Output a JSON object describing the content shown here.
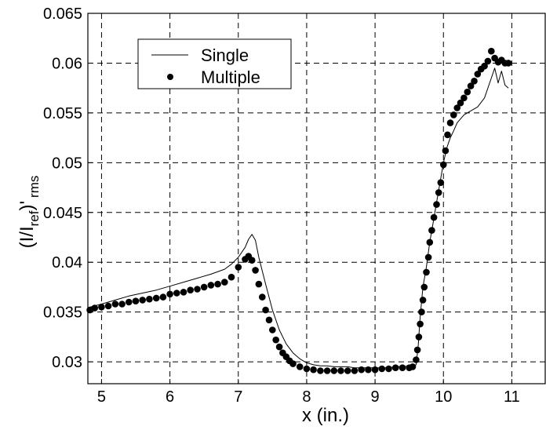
{
  "chart_data": {
    "type": "line",
    "xlabel": "x (in.)",
    "ylabel": {
      "main": "(I/I",
      "sub1": "ref",
      "mid": ")'",
      "sub2": "rms"
    },
    "xlim": [
      4.8,
      11.5
    ],
    "ylim": [
      0.0278,
      0.065
    ],
    "xticks": [
      "5",
      "6",
      "7",
      "8",
      "9",
      "10",
      "11"
    ],
    "yticks": [
      "0.03",
      "0.035",
      "0.04",
      "0.045",
      "0.05",
      "0.055",
      "0.06",
      "0.065"
    ],
    "grid": true,
    "legend_position": "top-left",
    "legend": [
      {
        "label": "Single",
        "style": "line"
      },
      {
        "label": "Multiple",
        "style": "dot"
      }
    ],
    "series": [
      {
        "name": "Single",
        "style": "line",
        "color": "#000000",
        "x": [
          4.83,
          5.0,
          5.2,
          5.4,
          5.6,
          5.8,
          6.0,
          6.2,
          6.4,
          6.6,
          6.8,
          6.9,
          7.0,
          7.1,
          7.15,
          7.2,
          7.25,
          7.3,
          7.4,
          7.5,
          7.6,
          7.7,
          7.8,
          7.9,
          8.0,
          8.1,
          8.2,
          8.3,
          8.4,
          8.5,
          8.6,
          8.7,
          8.8,
          8.9,
          9.0,
          9.1,
          9.2,
          9.3,
          9.4,
          9.5,
          9.55,
          9.6,
          9.63,
          9.66,
          9.7,
          9.75,
          9.8,
          9.85,
          9.9,
          9.95,
          10.0,
          10.05,
          10.1,
          10.15,
          10.2,
          10.3,
          10.4,
          10.5,
          10.6,
          10.7,
          10.75,
          10.8,
          10.85,
          10.9,
          10.95
        ],
        "y": [
          0.0355,
          0.0358,
          0.0362,
          0.0366,
          0.0369,
          0.0372,
          0.0376,
          0.038,
          0.0384,
          0.0388,
          0.0393,
          0.0398,
          0.0405,
          0.0415,
          0.0423,
          0.0428,
          0.0422,
          0.0405,
          0.0378,
          0.0352,
          0.0332,
          0.0318,
          0.0309,
          0.0303,
          0.0299,
          0.0297,
          0.0296,
          0.0296,
          0.0295,
          0.0295,
          0.0295,
          0.0294,
          0.0294,
          0.0294,
          0.0294,
          0.0294,
          0.0294,
          0.0295,
          0.0295,
          0.0296,
          0.0296,
          0.0297,
          0.0315,
          0.0345,
          0.0375,
          0.0395,
          0.042,
          0.044,
          0.046,
          0.048,
          0.05,
          0.0515,
          0.0525,
          0.0532,
          0.054,
          0.0548,
          0.0552,
          0.0556,
          0.0565,
          0.0585,
          0.0595,
          0.058,
          0.0592,
          0.0578,
          0.0575
        ]
      },
      {
        "name": "Multiple",
        "style": "dot",
        "color": "#000000",
        "x": [
          4.83,
          4.9,
          5.0,
          5.1,
          5.2,
          5.3,
          5.4,
          5.5,
          5.6,
          5.7,
          5.8,
          5.9,
          6.0,
          6.1,
          6.2,
          6.3,
          6.4,
          6.5,
          6.6,
          6.7,
          6.8,
          6.9,
          7.0,
          7.1,
          7.15,
          7.2,
          7.25,
          7.3,
          7.35,
          7.4,
          7.45,
          7.5,
          7.55,
          7.6,
          7.65,
          7.7,
          7.75,
          7.8,
          7.9,
          8.0,
          8.1,
          8.2,
          8.3,
          8.4,
          8.5,
          8.6,
          8.7,
          8.8,
          8.9,
          9.0,
          9.1,
          9.2,
          9.3,
          9.4,
          9.5,
          9.55,
          9.6,
          9.62,
          9.64,
          9.66,
          9.68,
          9.7,
          9.72,
          9.75,
          9.78,
          9.8,
          9.83,
          9.86,
          9.9,
          9.93,
          9.96,
          10.0,
          10.03,
          10.06,
          10.1,
          10.15,
          10.2,
          10.25,
          10.3,
          10.35,
          10.4,
          10.45,
          10.5,
          10.55,
          10.6,
          10.65,
          10.7,
          10.75,
          10.8,
          10.85,
          10.9,
          10.95
        ],
        "y": [
          0.0352,
          0.0354,
          0.0355,
          0.0356,
          0.0358,
          0.0358,
          0.036,
          0.0361,
          0.0362,
          0.0363,
          0.0364,
          0.0365,
          0.0368,
          0.0369,
          0.037,
          0.0372,
          0.0373,
          0.0375,
          0.0377,
          0.0378,
          0.038,
          0.0385,
          0.0395,
          0.0403,
          0.0406,
          0.0402,
          0.0392,
          0.0378,
          0.0365,
          0.0352,
          0.0342,
          0.0332,
          0.0322,
          0.0315,
          0.0309,
          0.0305,
          0.0301,
          0.0298,
          0.0295,
          0.0293,
          0.0292,
          0.0291,
          0.0291,
          0.0291,
          0.0291,
          0.0291,
          0.0291,
          0.0292,
          0.0292,
          0.0292,
          0.0293,
          0.0293,
          0.0294,
          0.0294,
          0.0294,
          0.0295,
          0.0302,
          0.0312,
          0.0325,
          0.0338,
          0.035,
          0.0362,
          0.0375,
          0.039,
          0.0405,
          0.042,
          0.0432,
          0.0445,
          0.0458,
          0.047,
          0.048,
          0.0498,
          0.0512,
          0.0528,
          0.054,
          0.0548,
          0.0555,
          0.056,
          0.0565,
          0.0571,
          0.0577,
          0.0582,
          0.0589,
          0.0594,
          0.0597,
          0.0602,
          0.0612,
          0.0605,
          0.0601,
          0.0603,
          0.06,
          0.06
        ]
      }
    ]
  }
}
